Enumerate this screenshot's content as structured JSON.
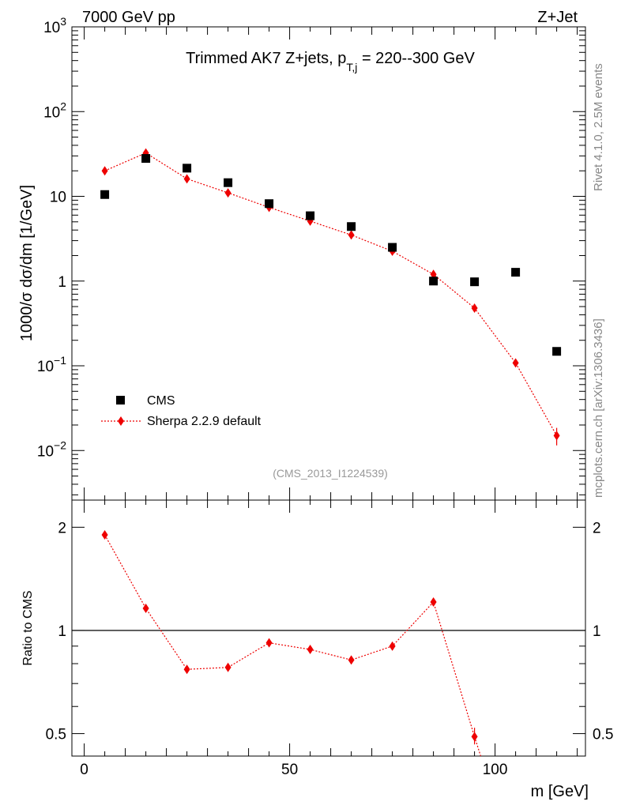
{
  "header": {
    "left": "7000 GeV pp",
    "right": "Z+Jet"
  },
  "title": {
    "prefix": "Trimmed AK7 Z+jets, p",
    "subscript": "T,j",
    "suffix": " = 220--300 GeV"
  },
  "side_text": {
    "rivet": "Rivet 4.1.0,  2.5M events",
    "mcplots": "mcplots.cern.ch [arXiv:1306.3436]"
  },
  "analysis_id": "(CMS_2013_I1224539)",
  "legend": {
    "data_label": "CMS",
    "mc_label": "Sherpa 2.2.9 default"
  },
  "colors": {
    "data": "#000000",
    "mc": "#ee0000",
    "side_text": "#888888"
  },
  "chart_data": [
    {
      "type": "scatter",
      "name": "main",
      "ylabel": "1000/σ  dσ/dm [1/GeV]",
      "yscale": "log",
      "ylim": [
        0.0026,
        1000
      ],
      "xlim": [
        -3,
        122
      ],
      "y_ticks": [
        {
          "value": 0.01,
          "base": "10",
          "exp": "−2"
        },
        {
          "value": 0.1,
          "base": "10",
          "exp": "−1"
        },
        {
          "value": 1,
          "base": "1",
          "exp": ""
        },
        {
          "value": 10,
          "base": "10",
          "exp": ""
        },
        {
          "value": 100,
          "base": "10",
          "exp": "2"
        },
        {
          "value": 1000,
          "base": "10",
          "exp": "3"
        }
      ],
      "series": [
        {
          "name": "CMS",
          "x": [
            5,
            15,
            25,
            35,
            45,
            55,
            65,
            75,
            85,
            95,
            105,
            115
          ],
          "values": [
            10.5,
            28,
            21.5,
            14.5,
            8.2,
            5.9,
            4.4,
            2.5,
            1.0,
            0.98,
            1.27,
            0.148
          ]
        },
        {
          "name": "Sherpa 2.2.9 default",
          "x": [
            5,
            15,
            25,
            35,
            45,
            55,
            65,
            75,
            85,
            95,
            105,
            115
          ],
          "values": [
            20,
            32.5,
            16.1,
            11.0,
            7.4,
            5.1,
            3.5,
            2.25,
            1.2,
            0.48,
            0.108,
            0.015
          ]
        }
      ]
    },
    {
      "type": "line",
      "name": "ratio",
      "ylabel": "Ratio to CMS",
      "xlabel": "m [GeV]",
      "yscale": "log",
      "ylim": [
        0.43,
        2.4
      ],
      "xlim": [
        -3,
        122
      ],
      "x_ticks": [
        "0",
        "50",
        "100"
      ],
      "y_ticks": [
        "0.5",
        "1",
        "2"
      ],
      "reference": 1,
      "series": [
        {
          "name": "Sherpa 2.2.9 default",
          "x": [
            5,
            15,
            25,
            35,
            45,
            55,
            65,
            75,
            85,
            95,
            96.5
          ],
          "values": [
            1.9,
            1.16,
            0.77,
            0.78,
            0.92,
            0.88,
            0.82,
            0.9,
            1.21,
            0.49,
            0.43
          ]
        }
      ]
    }
  ]
}
